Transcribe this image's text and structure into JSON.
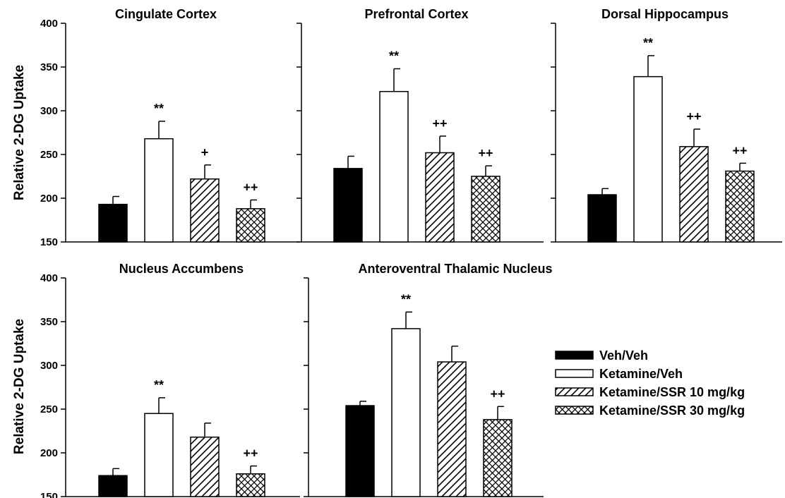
{
  "figure": {
    "ylabel": "Relative 2-DG Uptake",
    "legend": [
      {
        "label": "Veh/Veh",
        "pattern": "solid"
      },
      {
        "label": "Ketamine/Veh",
        "pattern": "open"
      },
      {
        "label": "Ketamine/SSR 10 mg/kg",
        "pattern": "hatch"
      },
      {
        "label": "Ketamine/SSR 30 mg/kg",
        "pattern": "crosshatch"
      }
    ]
  },
  "chart_data": [
    {
      "type": "bar",
      "title": "Cingulate Cortex",
      "categories": [
        "Veh/Veh",
        "Ketamine/Veh",
        "Ketamine/SSR 10 mg/kg",
        "Ketamine/SSR 30 mg/kg"
      ],
      "values": [
        193,
        268,
        222,
        188
      ],
      "errors": [
        9,
        20,
        16,
        10
      ],
      "significance": [
        "",
        "**",
        "+",
        "++"
      ],
      "ylabel": "Relative 2-DG Uptake",
      "ylim": [
        150,
        400
      ],
      "yticks": [
        150,
        200,
        250,
        300,
        350,
        400
      ],
      "show_tick_labels": true
    },
    {
      "type": "bar",
      "title": "Prefrontal Cortex",
      "categories": [
        "Veh/Veh",
        "Ketamine/Veh",
        "Ketamine/SSR 10 mg/kg",
        "Ketamine/SSR 30 mg/kg"
      ],
      "values": [
        234,
        322,
        252,
        225
      ],
      "errors": [
        14,
        26,
        19,
        12
      ],
      "significance": [
        "",
        "**",
        "++",
        "++"
      ],
      "ylim": [
        150,
        400
      ],
      "yticks": [
        150,
        200,
        250,
        300,
        350,
        400
      ],
      "show_tick_labels": false
    },
    {
      "type": "bar",
      "title": "Dorsal Hippocampus",
      "categories": [
        "Veh/Veh",
        "Ketamine/Veh",
        "Ketamine/SSR 10 mg/kg",
        "Ketamine/SSR 30 mg/kg"
      ],
      "values": [
        204,
        339,
        259,
        231
      ],
      "errors": [
        7,
        24,
        20,
        9
      ],
      "significance": [
        "",
        "**",
        "++",
        "++"
      ],
      "ylim": [
        150,
        400
      ],
      "yticks": [
        150,
        200,
        250,
        300,
        350,
        400
      ],
      "show_tick_labels": false
    },
    {
      "type": "bar",
      "title": "Nucleus Accumbens",
      "categories": [
        "Veh/Veh",
        "Ketamine/Veh",
        "Ketamine/SSR 10 mg/kg",
        "Ketamine/SSR 30 mg/kg"
      ],
      "values": [
        174,
        245,
        218,
        176
      ],
      "errors": [
        8,
        18,
        16,
        9
      ],
      "significance": [
        "",
        "**",
        "",
        "++"
      ],
      "ylabel": "Relative 2-DG Uptake",
      "ylim": [
        150,
        400
      ],
      "yticks": [
        150,
        200,
        250,
        300,
        350,
        400
      ],
      "show_tick_labels": true
    },
    {
      "type": "bar",
      "title": "Anteroventral Thalamic Nucleus",
      "categories": [
        "Veh/Veh",
        "Ketamine/Veh",
        "Ketamine/SSR 10 mg/kg",
        "Ketamine/SSR 30 mg/kg"
      ],
      "values": [
        254,
        342,
        304,
        238
      ],
      "errors": [
        5,
        19,
        18,
        15
      ],
      "significance": [
        "",
        "**",
        "",
        "++"
      ],
      "ylim": [
        150,
        400
      ],
      "yticks": [
        150,
        200,
        250,
        300,
        350,
        400
      ],
      "show_tick_labels": false
    }
  ]
}
